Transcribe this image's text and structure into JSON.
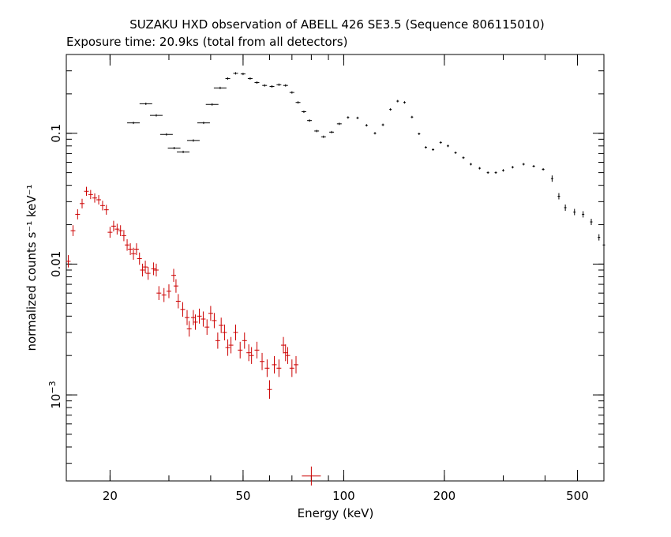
{
  "chart_data": {
    "type": "scatter",
    "title": "SUZAKU HXD observation of ABELL 426 SE3.5 (Sequence 806115010)",
    "subtitle": "Exposure time: 20.9ks (total from all detectors)",
    "xlabel": "Energy (keV)",
    "ylabel": "normalized counts s⁻¹ keV⁻¹",
    "xscale": "log",
    "yscale": "log",
    "xlim": [
      14.8,
      600
    ],
    "ylim": [
      0.00022,
      0.4
    ],
    "x_ticks": [
      {
        "value": 20,
        "label": "20"
      },
      {
        "value": 50,
        "label": "50"
      },
      {
        "value": 100,
        "label": "100"
      },
      {
        "value": 200,
        "label": "200"
      },
      {
        "value": 500,
        "label": "500"
      }
    ],
    "y_ticks": [
      {
        "value": 0.001,
        "label": "10",
        "exp": "−3"
      },
      {
        "value": 0.01,
        "label": "0.01"
      },
      {
        "value": 0.1,
        "label": "0.1"
      }
    ],
    "grid": false,
    "series": [
      {
        "color": "#000000",
        "points": [
          [
            23.5,
            0.12
          ],
          [
            25.6,
            0.168
          ],
          [
            27.5,
            0.137
          ],
          [
            29.5,
            0.098
          ],
          [
            31.1,
            0.077
          ],
          [
            33.1,
            0.072
          ],
          [
            35.5,
            0.088
          ],
          [
            38.1,
            0.12
          ],
          [
            40.4,
            0.166
          ],
          [
            42.7,
            0.222
          ],
          [
            45.0,
            0.262
          ],
          [
            47.5,
            0.287
          ],
          [
            50.0,
            0.284
          ],
          [
            52.5,
            0.262
          ],
          [
            55.0,
            0.244
          ],
          [
            58.0,
            0.232
          ],
          [
            61.0,
            0.228
          ],
          [
            64.0,
            0.235
          ],
          [
            67.0,
            0.232
          ],
          [
            70.0,
            0.205
          ],
          [
            73.0,
            0.172
          ],
          [
            76.0,
            0.146
          ],
          [
            79.0,
            0.125
          ],
          [
            83.0,
            0.104
          ],
          [
            87.0,
            0.094
          ],
          [
            92.0,
            0.102
          ],
          [
            97.0,
            0.118
          ],
          [
            103.0,
            0.132
          ],
          [
            110.0,
            0.131
          ],
          [
            117.0,
            0.115
          ],
          [
            124.0,
            0.1
          ],
          [
            131.0,
            0.116
          ],
          [
            138.0,
            0.152
          ],
          [
            145.0,
            0.176
          ],
          [
            152.0,
            0.172
          ],
          [
            160.0,
            0.133
          ],
          [
            168.0,
            0.099
          ],
          [
            176.0,
            0.078
          ],
          [
            185.0,
            0.075
          ],
          [
            195.0,
            0.085
          ],
          [
            205.0,
            0.08
          ],
          [
            216.0,
            0.071
          ],
          [
            228.0,
            0.065
          ],
          [
            240.0,
            0.058
          ],
          [
            255.0,
            0.054
          ],
          [
            270.0,
            0.05
          ],
          [
            285.0,
            0.05
          ],
          [
            300.0,
            0.052
          ],
          [
            320.0,
            0.055
          ],
          [
            345.0,
            0.058
          ],
          [
            370.0,
            0.056
          ],
          [
            395.0,
            0.053
          ],
          [
            420.0,
            0.045
          ],
          [
            440.0,
            0.033
          ],
          [
            460.0,
            0.027
          ],
          [
            490.0,
            0.025
          ],
          [
            520.0,
            0.024
          ],
          [
            550.0,
            0.021
          ],
          [
            580.0,
            0.016
          ],
          [
            600.0,
            0.014
          ]
        ]
      },
      {
        "color": "#cc0000",
        "points": [
          [
            15.0,
            0.0105
          ],
          [
            15.5,
            0.018
          ],
          [
            16.0,
            0.024
          ],
          [
            16.5,
            0.029
          ],
          [
            17.0,
            0.036
          ],
          [
            17.5,
            0.034
          ],
          [
            18.0,
            0.032
          ],
          [
            18.5,
            0.031
          ],
          [
            19.0,
            0.028
          ],
          [
            19.5,
            0.026
          ],
          [
            20.0,
            0.0175
          ],
          [
            20.5,
            0.0195
          ],
          [
            21.0,
            0.0185
          ],
          [
            21.5,
            0.018
          ],
          [
            22.0,
            0.0165
          ],
          [
            22.5,
            0.014
          ],
          [
            23.0,
            0.013
          ],
          [
            23.5,
            0.012
          ],
          [
            24.0,
            0.013
          ],
          [
            24.5,
            0.011
          ],
          [
            25.0,
            0.009
          ],
          [
            25.5,
            0.0095
          ],
          [
            26.0,
            0.0085
          ],
          [
            27.0,
            0.0092
          ],
          [
            27.5,
            0.009
          ],
          [
            28.0,
            0.006
          ],
          [
            29.0,
            0.0058
          ],
          [
            30.0,
            0.0062
          ],
          [
            31.0,
            0.0082
          ],
          [
            31.5,
            0.0068
          ],
          [
            32.0,
            0.0052
          ],
          [
            33.0,
            0.0045
          ],
          [
            34.0,
            0.0039
          ],
          [
            34.5,
            0.0032
          ],
          [
            35.5,
            0.0039
          ],
          [
            36.0,
            0.0036
          ],
          [
            37.0,
            0.004
          ],
          [
            38.0,
            0.0038
          ],
          [
            39.0,
            0.0033
          ],
          [
            40.0,
            0.0042
          ],
          [
            41.0,
            0.0037
          ],
          [
            42.0,
            0.0026
          ],
          [
            43.0,
            0.0034
          ],
          [
            44.0,
            0.003
          ],
          [
            45.0,
            0.0023
          ],
          [
            46.0,
            0.0024
          ],
          [
            47.5,
            0.003
          ],
          [
            49.0,
            0.0022
          ],
          [
            50.5,
            0.0026
          ],
          [
            52.0,
            0.0021
          ],
          [
            53.0,
            0.002
          ],
          [
            55.0,
            0.0022
          ],
          [
            57.0,
            0.0018
          ],
          [
            59.0,
            0.0016
          ],
          [
            60.0,
            0.0011
          ],
          [
            62.0,
            0.0017
          ],
          [
            64.0,
            0.0016
          ],
          [
            66.0,
            0.0024
          ],
          [
            67.0,
            0.0021
          ],
          [
            68.0,
            0.002
          ],
          [
            70.0,
            0.0016
          ],
          [
            72.0,
            0.0017
          ],
          [
            80.0,
            0.00024
          ]
        ]
      }
    ]
  }
}
